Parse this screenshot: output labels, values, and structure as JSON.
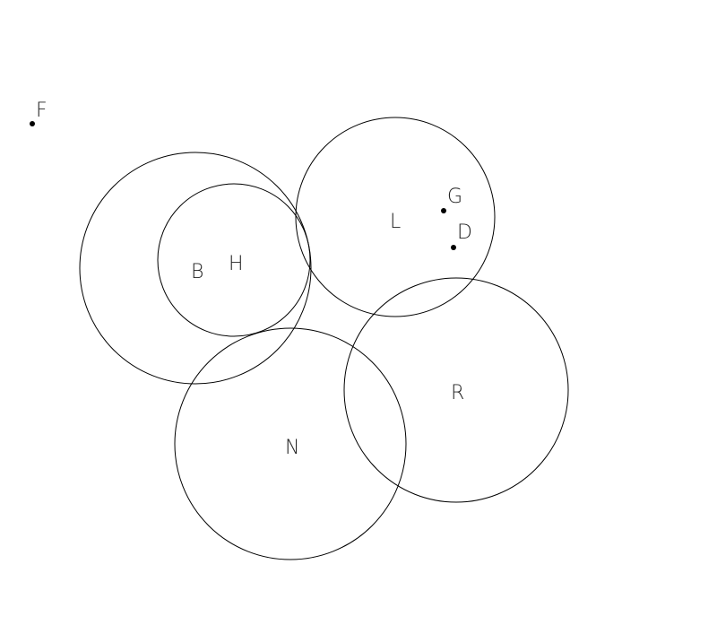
{
  "colors": {
    "background": "#ffffff",
    "stroke": "#000000",
    "text": "#222222"
  },
  "circles": [
    {
      "id": "B",
      "label": "B"
    },
    {
      "id": "H",
      "label": "H"
    },
    {
      "id": "L",
      "label": "L"
    },
    {
      "id": "R",
      "label": "R"
    },
    {
      "id": "N",
      "label": "N"
    }
  ],
  "points": [
    {
      "id": "F",
      "label": "F"
    },
    {
      "id": "G",
      "label": "G"
    },
    {
      "id": "D",
      "label": "D"
    }
  ]
}
